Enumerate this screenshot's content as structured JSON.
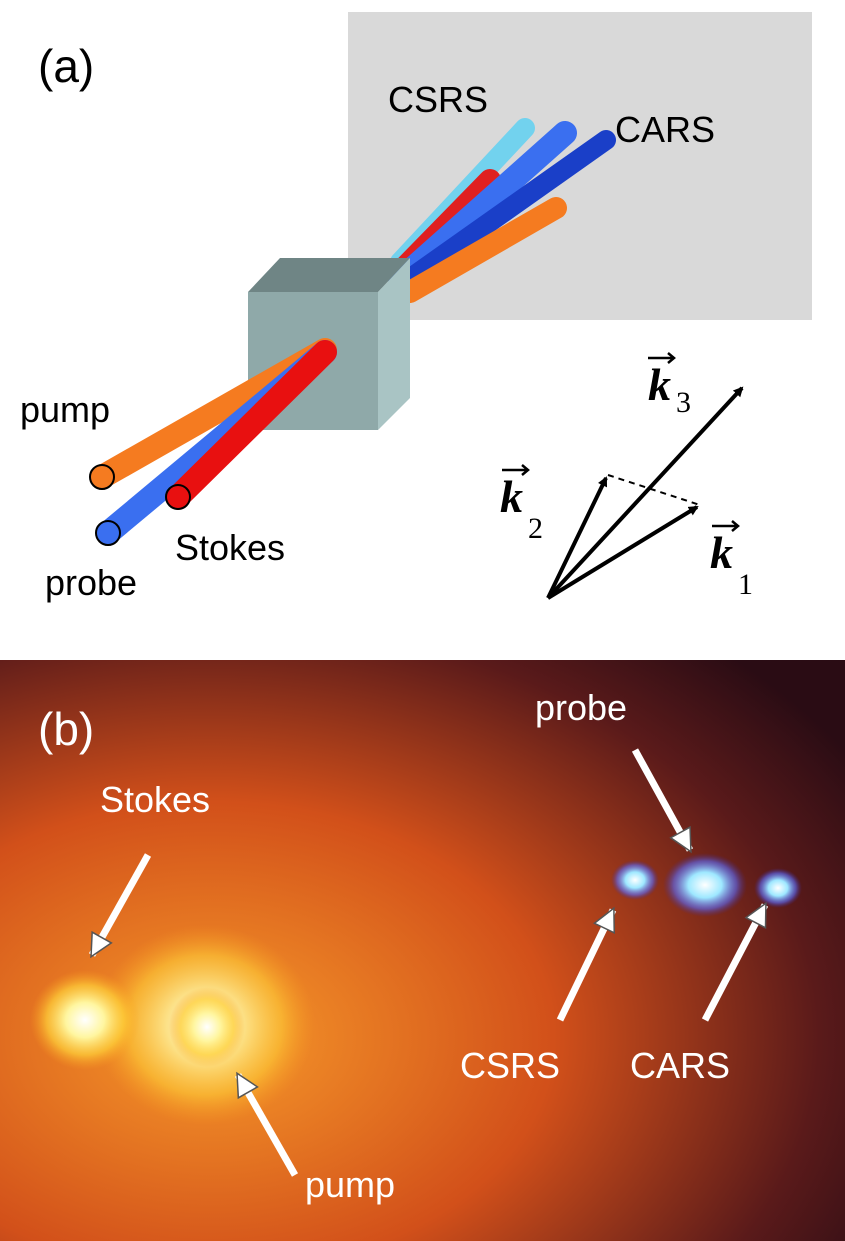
{
  "panel_a": {
    "label": "(a)",
    "beams_out": [
      "CSRS",
      "CARS"
    ],
    "beams_in": {
      "pump": "pump",
      "probe": "probe",
      "stokes": "Stokes"
    },
    "vectors": [
      {
        "symbol": "k",
        "index": "1"
      },
      {
        "symbol": "k",
        "index": "2"
      },
      {
        "symbol": "k",
        "index": "3"
      }
    ]
  },
  "panel_b": {
    "label": "(b)",
    "spots": [
      "Stokes",
      "pump",
      "probe",
      "CSRS",
      "CARS"
    ]
  }
}
